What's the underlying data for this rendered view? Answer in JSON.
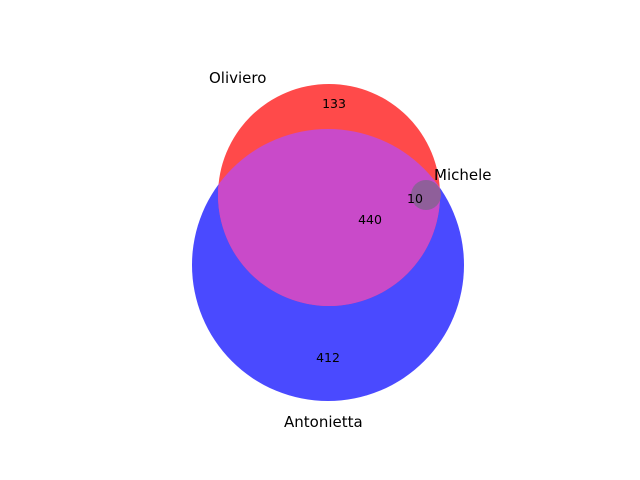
{
  "chart_data": {
    "type": "venn",
    "title": "",
    "sets": [
      {
        "name": "Oliviero",
        "color": "#ff0000"
      },
      {
        "name": "Antonietta",
        "color": "#0000ff"
      },
      {
        "name": "Michele",
        "color": "#808080"
      }
    ],
    "regions": [
      {
        "sets": [
          "Oliviero"
        ],
        "value": 133
      },
      {
        "sets": [
          "Oliviero",
          "Antonietta"
        ],
        "value": 440
      },
      {
        "sets": [
          "Oliviero",
          "Antonietta",
          "Michele"
        ],
        "value": 10
      },
      {
        "sets": [
          "Antonietta"
        ],
        "value": 412
      }
    ],
    "colors": {
      "oliviero_fill": "#ff4a4a",
      "antonietta_fill": "#4a4aff",
      "overlap_fill": "#c94ac9",
      "michele_fill": "#8f5f9a"
    }
  }
}
